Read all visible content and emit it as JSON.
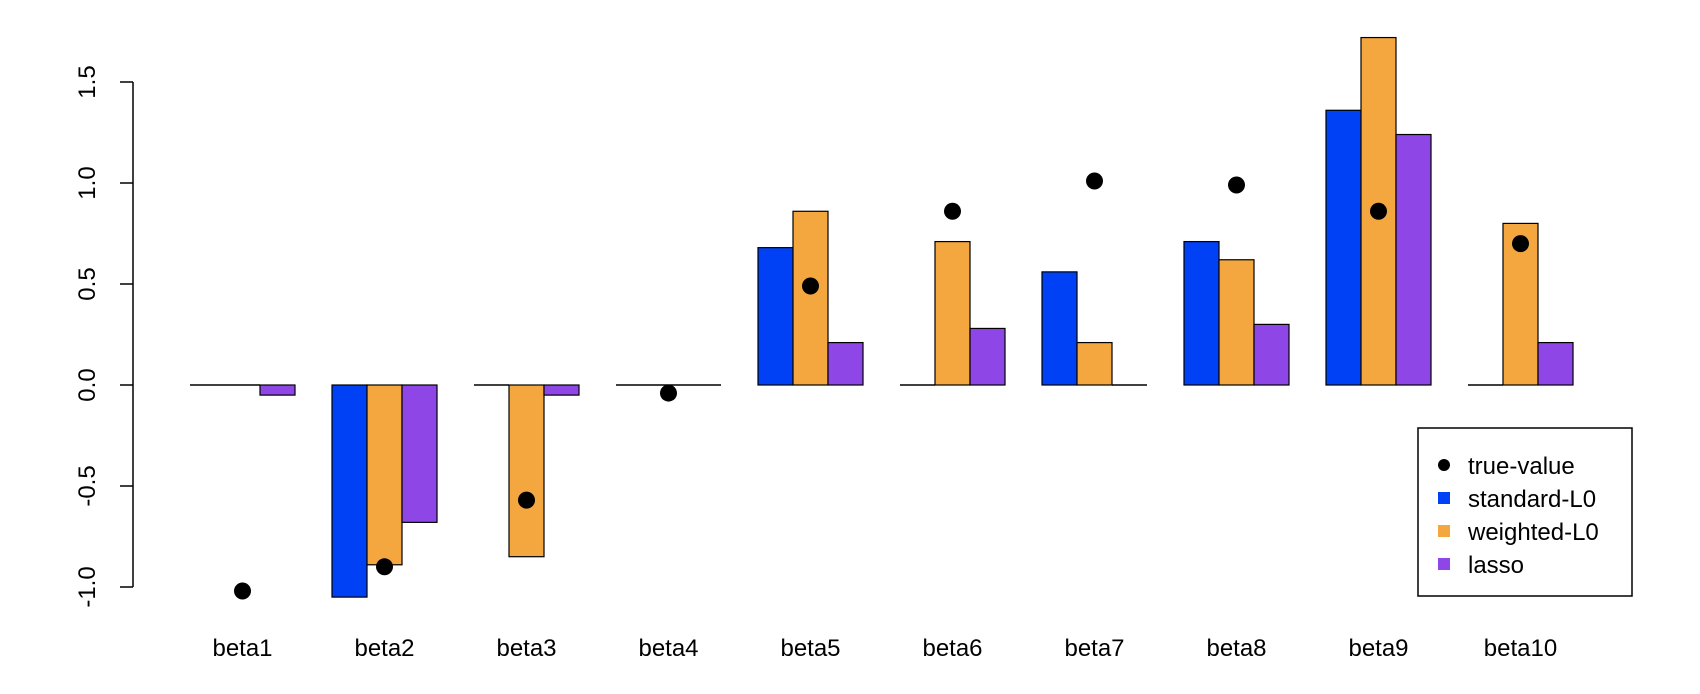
{
  "chart_data": {
    "type": "bar",
    "categories": [
      "beta1",
      "beta2",
      "beta3",
      "beta4",
      "beta5",
      "beta6",
      "beta7",
      "beta8",
      "beta9",
      "beta10"
    ],
    "series": [
      {
        "name": "standard-L0",
        "color": "#0041f5",
        "values": [
          0,
          -1.05,
          0,
          0,
          0.68,
          0,
          0.56,
          0.71,
          1.36,
          0
        ]
      },
      {
        "name": "weighted-L0",
        "color": "#f4a73f",
        "values": [
          0,
          -0.89,
          -0.85,
          0,
          0.86,
          0.71,
          0.21,
          0.62,
          1.72,
          0.8
        ]
      },
      {
        "name": "lasso",
        "color": "#8f46e6",
        "values": [
          -0.05,
          -0.68,
          -0.05,
          0,
          0.21,
          0.28,
          0,
          0.3,
          1.24,
          0.21
        ]
      }
    ],
    "points": {
      "name": "true-value",
      "color": "#000000",
      "values": [
        -1.02,
        -0.9,
        -0.57,
        -0.04,
        0.49,
        0.86,
        1.01,
        0.99,
        0.86,
        0.7
      ]
    },
    "yticks": [
      "-1.0",
      "-0.5",
      "0.0",
      "0.5",
      "1.0",
      "1.5"
    ],
    "ytick_values": [
      -1.0,
      -0.5,
      0.0,
      0.5,
      1.0,
      1.5
    ],
    "ylim": [
      -1.05,
      1.72
    ],
    "legend_position": "bottom-right",
    "grid": false
  }
}
